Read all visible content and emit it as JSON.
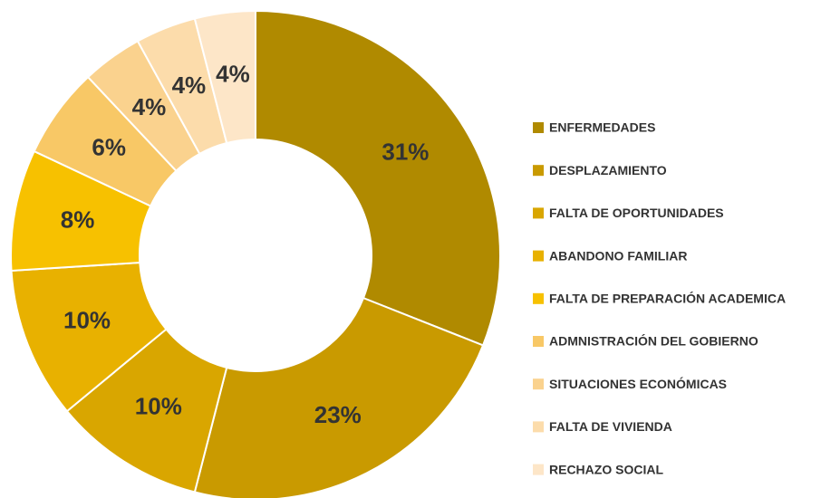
{
  "chart_data": {
    "type": "donut",
    "categories": [
      "ENFERMEDADES",
      "DESPLAZAMIENTO",
      "FALTA DE OPORTUNIDADES",
      "ABANDONO FAMILIAR",
      "FALTA DE PREPARACIÓN ACADEMICA",
      "ADMNISTRACIÓN DEL GOBIERNO",
      "SITUACIONES ECONÓMICAS",
      "FALTA DE VIVIENDA",
      "RECHAZO SOCIAL"
    ],
    "values": [
      31,
      23,
      10,
      10,
      8,
      6,
      4,
      4,
      4
    ],
    "value_labels": [
      "31%",
      "23%",
      "10%",
      "10%",
      "8%",
      "6%",
      "4%",
      "4%",
      "4%"
    ],
    "colors": [
      "#b08a00",
      "#c99a00",
      "#d9a600",
      "#e8b100",
      "#f7c100",
      "#f8c866",
      "#fad28e",
      "#fcdcab",
      "#fde6c8"
    ],
    "legend": "right"
  }
}
